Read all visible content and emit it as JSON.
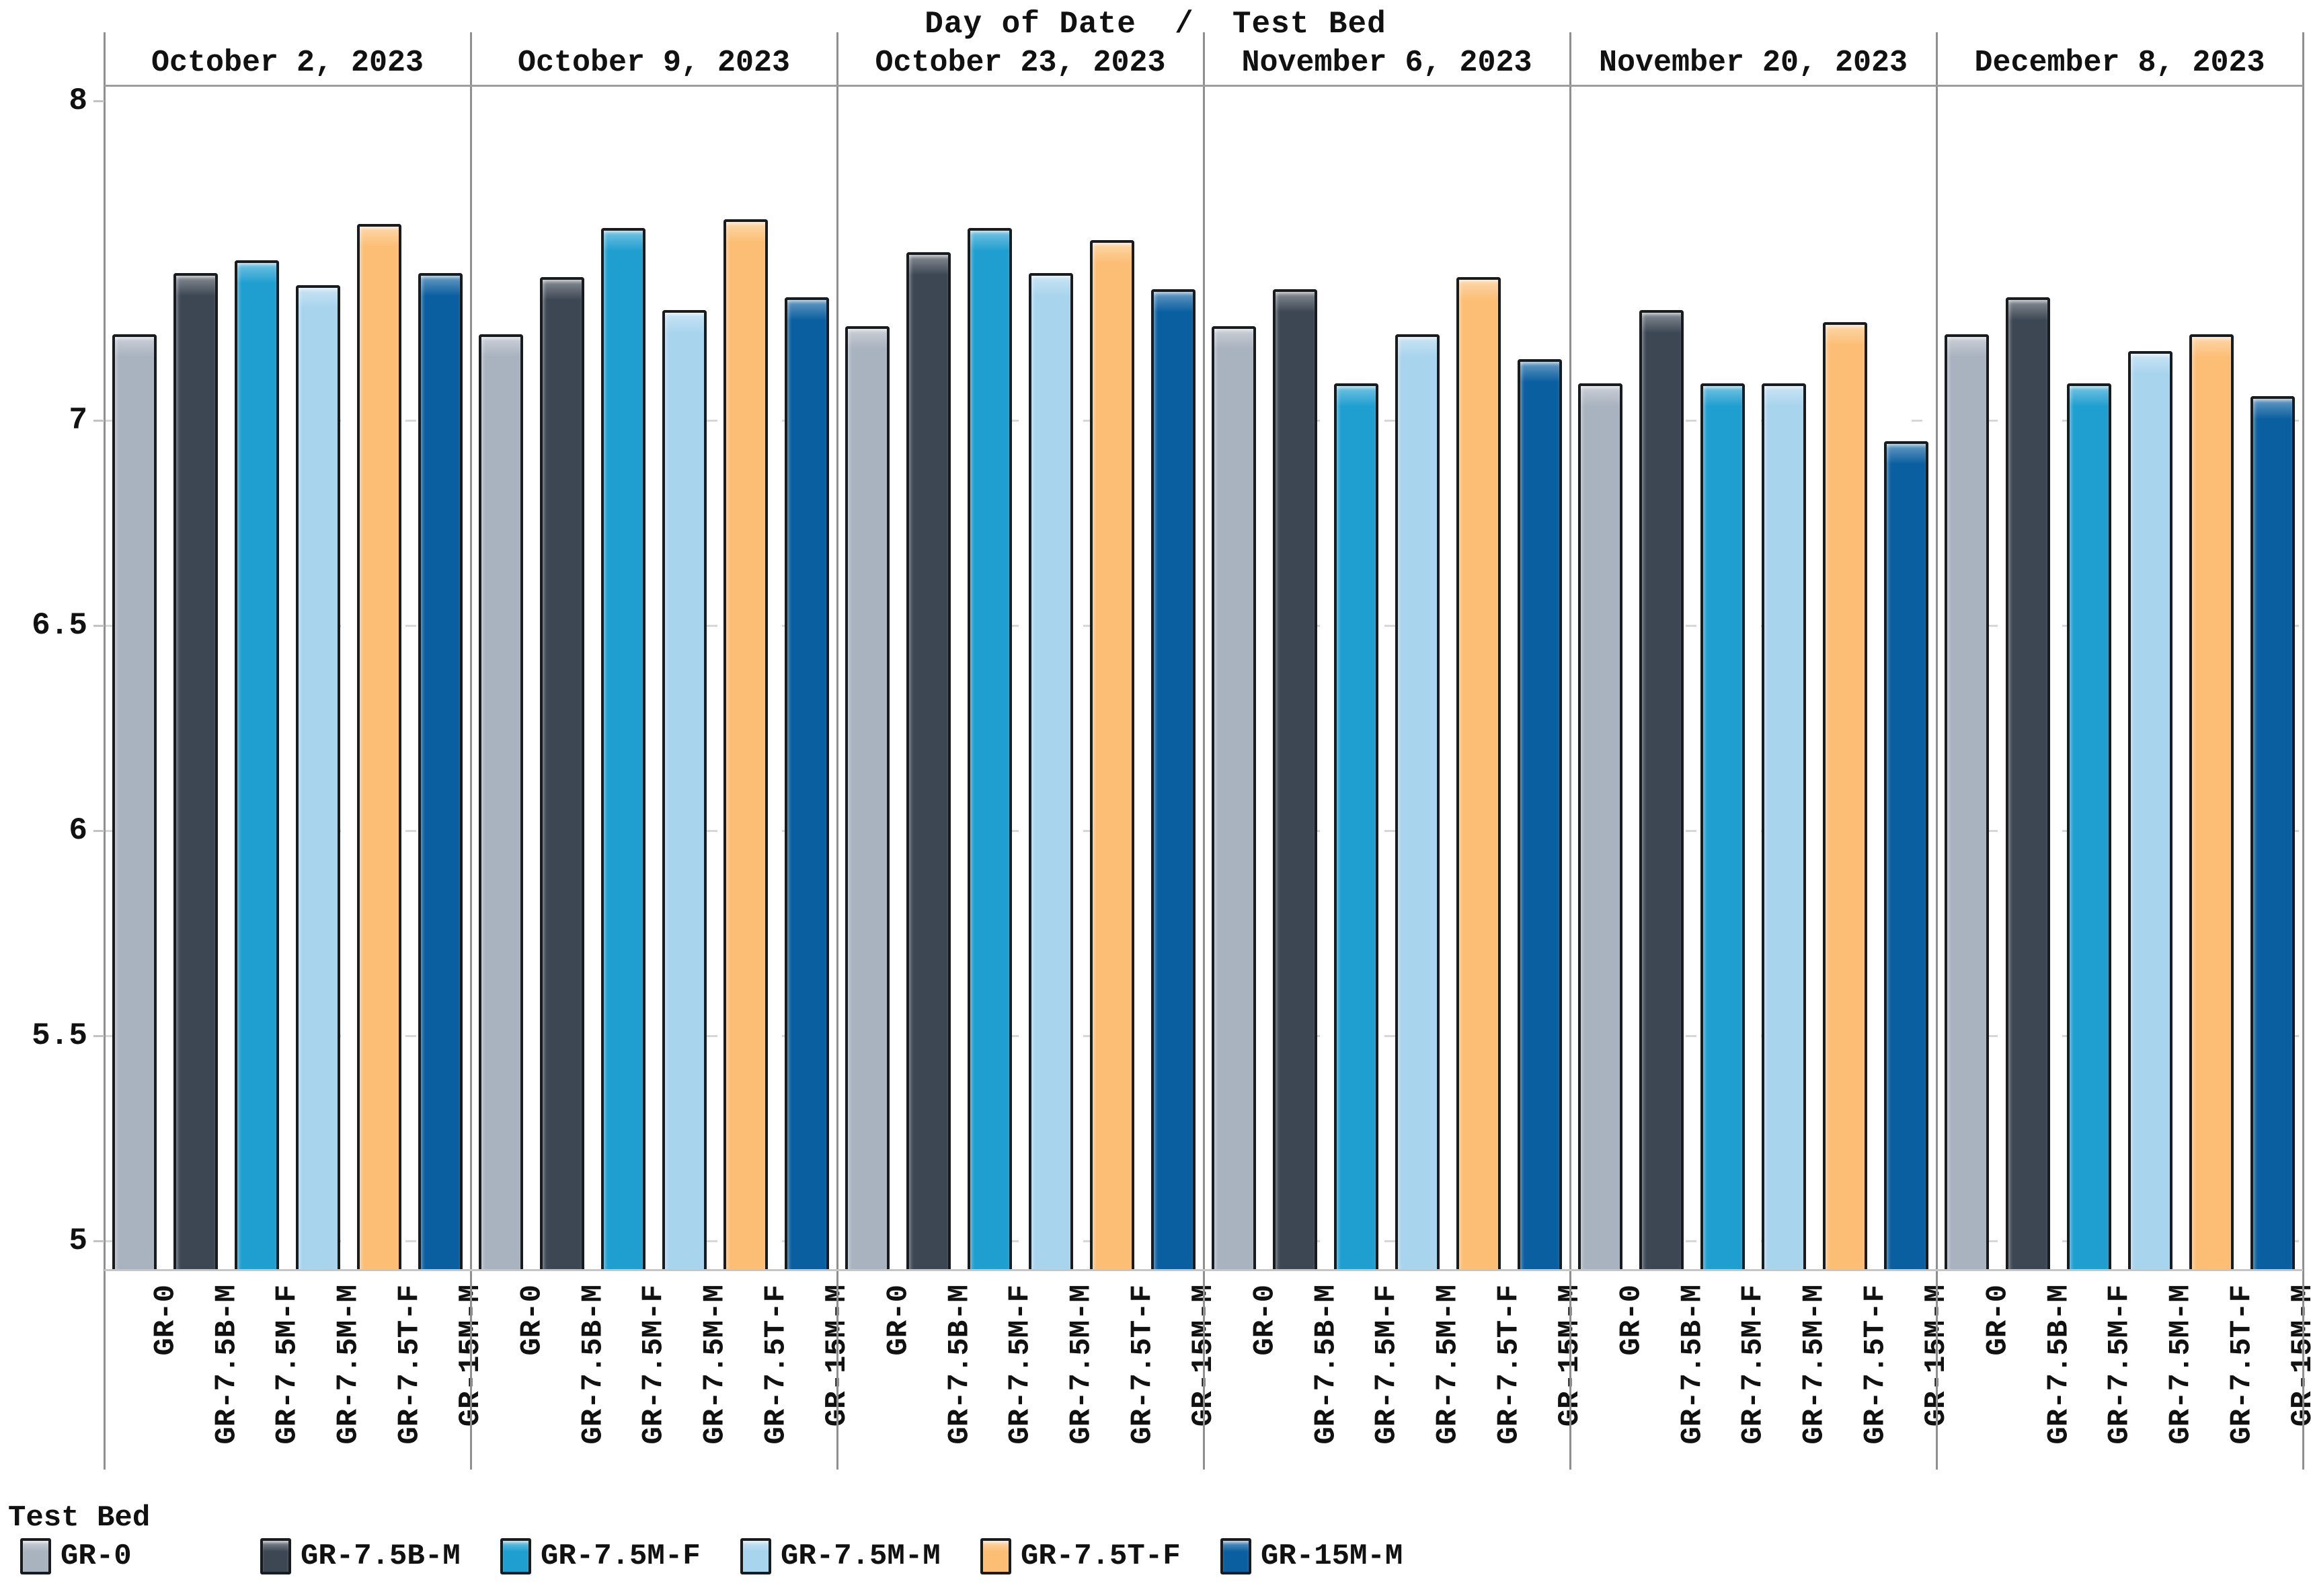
{
  "title": "Day of Date  /  Test Bed",
  "legend": {
    "title": "Test Bed",
    "items": [
      {
        "label": "GR-0",
        "color": "#a9b2bf"
      },
      {
        "label": "GR-7.5B-M",
        "color": "#3d4754"
      },
      {
        "label": "GR-7.5M-F",
        "color": "#1f9fd0"
      },
      {
        "label": "GR-7.5M-M",
        "color": "#a8d4ee"
      },
      {
        "label": "GR-7.5T-F",
        "color": "#fcbe75"
      },
      {
        "label": "GR-15M-M",
        "color": "#0a5fa0"
      }
    ]
  },
  "y_axis": {
    "tick_labels": [
      "8",
      "7",
      "6.5",
      "6",
      "5.5",
      "5"
    ],
    "tick_values": [
      8,
      7,
      6.5,
      6,
      5.5,
      5
    ]
  },
  "chart_data": {
    "type": "bar",
    "title": "Day of Date  /  Test Bed",
    "group_axis_label": "Day of Date",
    "category_axis_label": "Test Bed",
    "groups": [
      "October 2, 2023",
      "October 9, 2023",
      "October 23, 2023",
      "November 6, 2023",
      "November 20, 2023",
      "December 8, 2023"
    ],
    "categories": [
      "GR-0",
      "GR-7.5B-M",
      "GR-7.5M-F",
      "GR-7.5M-M",
      "GR-7.5T-F",
      "GR-15M-M"
    ],
    "series": [
      {
        "name": "GR-0",
        "color": "#a9b2bf",
        "values": [
          7.21,
          7.21,
          7.23,
          7.23,
          7.09,
          7.21
        ]
      },
      {
        "name": "GR-7.5B-M",
        "color": "#3d4754",
        "values": [
          7.36,
          7.35,
          7.41,
          7.32,
          7.27,
          7.3
        ]
      },
      {
        "name": "GR-7.5M-F",
        "color": "#1f9fd0",
        "values": [
          7.39,
          7.47,
          7.47,
          7.09,
          7.09,
          7.09
        ]
      },
      {
        "name": "GR-7.5M-M",
        "color": "#a8d4ee",
        "values": [
          7.33,
          7.27,
          7.36,
          7.21,
          7.09,
          7.17
        ]
      },
      {
        "name": "GR-7.5T-F",
        "color": "#fcbe75",
        "values": [
          7.48,
          7.49,
          7.44,
          7.35,
          7.24,
          7.21
        ]
      },
      {
        "name": "GR-15M-M",
        "color": "#0a5fa0",
        "values": [
          7.36,
          7.3,
          7.32,
          7.15,
          6.95,
          7.06
        ]
      }
    ],
    "ylim": [
      5,
      8
    ],
    "y_ticks_labeled": [
      8,
      7,
      6.5,
      6,
      5.5,
      5
    ],
    "grid": "dashed horizontal gridlines at 7, 6.5, 6, 5.5, 5; solid bottom edge",
    "legend_position": "bottom-left"
  }
}
